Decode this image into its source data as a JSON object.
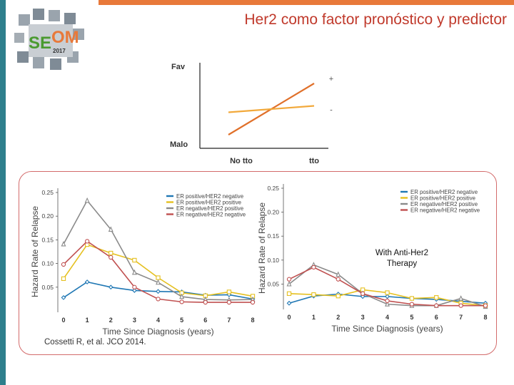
{
  "slide": {
    "title": "Her2 como factor pronóstico y predictor"
  },
  "logo": {
    "text_left": "SE",
    "text_right": "OM",
    "year": "2017"
  },
  "citation": "Cossetti R, et al. JCO 2014.",
  "overlay": {
    "line1": "With Anti-Her2",
    "line2": "Therapy"
  },
  "colors": {
    "accent_orange": "#e8793a",
    "accent_teal": "#2e7f8c",
    "title_red": "#c0392b"
  },
  "chart_data": [
    {
      "type": "line",
      "title": "",
      "ylabel_top": "Fav",
      "ylabel_bottom": "Malo",
      "categories": [
        "No tto",
        "tto"
      ],
      "series": [
        {
          "name": "+",
          "color": "#e0702a",
          "values": [
            0.1,
            0.9
          ]
        },
        {
          "name": "-",
          "color": "#f2a93b",
          "values": [
            0.45,
            0.55
          ]
        }
      ]
    },
    {
      "type": "line",
      "xlabel": "Time Since Diagnosis (years)",
      "ylabel": "Hazard Rate of Relapse",
      "x": [
        0,
        1,
        2,
        3,
        4,
        5,
        6,
        7,
        8
      ],
      "ylim": [
        0,
        0.25
      ],
      "yticks": [
        "0.05",
        "0.10",
        "0.15",
        "0.20",
        "0.25"
      ],
      "xticks": [
        "0",
        "1",
        "2",
        "3",
        "4",
        "5",
        "6",
        "7",
        "8"
      ],
      "series": [
        {
          "name": "ER positive/HER2 negative",
          "color": "#1f77b4",
          "marker": "diamond",
          "values": [
            0.028,
            0.061,
            0.05,
            0.043,
            0.041,
            0.04,
            0.033,
            0.034,
            0.025
          ]
        },
        {
          "name": "ER positive/HER2 positive",
          "color": "#e5c020",
          "marker": "square",
          "values": [
            0.068,
            0.14,
            0.122,
            0.107,
            0.07,
            0.038,
            0.032,
            0.04,
            0.031
          ]
        },
        {
          "name": "ER negative/HER2 positive",
          "color": "#8a8a8a",
          "marker": "triangle",
          "values": [
            0.141,
            0.233,
            0.172,
            0.081,
            0.06,
            0.03,
            0.024,
            0.023,
            0.024
          ]
        },
        {
          "name": "ER negative/HER2 negative",
          "color": "#c05050",
          "marker": "circle",
          "values": [
            0.098,
            0.147,
            0.113,
            0.05,
            0.025,
            0.019,
            0.018,
            0.018,
            0.018
          ]
        }
      ]
    },
    {
      "type": "line",
      "xlabel": "Time Since Diagnosis (years)",
      "ylabel": "Hazard Rate of Relapse",
      "x": [
        0,
        1,
        2,
        3,
        4,
        5,
        6,
        7,
        8
      ],
      "ylim": [
        0,
        0.25
      ],
      "yticks": [
        "0.05",
        "0.10",
        "0.15",
        "0.20",
        "0.25"
      ],
      "xticks": [
        "0",
        "1",
        "2",
        "3",
        "4",
        "5",
        "6",
        "7",
        "8"
      ],
      "series": [
        {
          "name": "ER positive/HER2 negative",
          "color": "#1f77b4",
          "marker": "diamond",
          "values": [
            0.01,
            0.025,
            0.029,
            0.024,
            0.024,
            0.02,
            0.018,
            0.014,
            0.01
          ]
        },
        {
          "name": "ER positive/HER2 positive",
          "color": "#e5c020",
          "marker": "square",
          "values": [
            0.03,
            0.028,
            0.025,
            0.038,
            0.032,
            0.02,
            0.022,
            0.01,
            0.005
          ]
        },
        {
          "name": "ER negative/HER2 positive",
          "color": "#8a8a8a",
          "marker": "triangle",
          "values": [
            0.05,
            0.09,
            0.07,
            0.03,
            0.008,
            0.005,
            0.005,
            0.02,
            0.003
          ]
        },
        {
          "name": "ER negative/HER2 negative",
          "color": "#c05050",
          "marker": "circle",
          "values": [
            0.06,
            0.085,
            0.06,
            0.03,
            0.015,
            0.008,
            0.005,
            0.005,
            0.005
          ]
        }
      ]
    }
  ]
}
